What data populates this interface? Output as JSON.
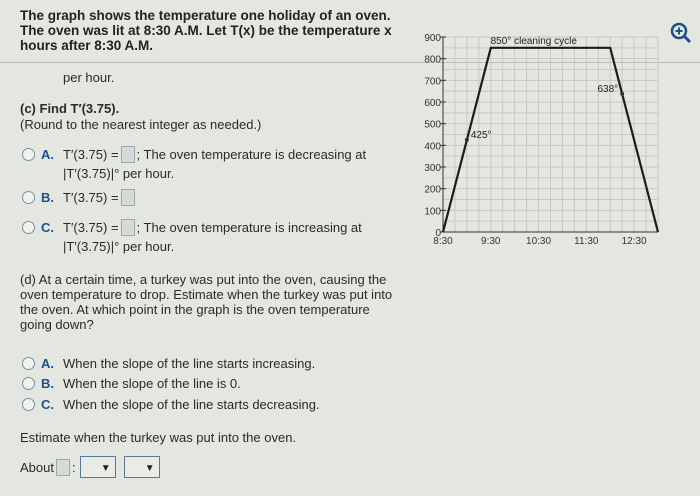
{
  "intro": "The graph shows the temperature one holiday of an oven. The oven was lit at 8:30 A.M. Let T(x) be the temperature x hours after 8:30 A.M.",
  "prev_tail": "per hour.",
  "part_c": {
    "title": "(c) Find T′(3.75).",
    "note": "(Round to the nearest integer as needed.)",
    "options": [
      {
        "letter": "A.",
        "pre": "T′(3.75) =",
        "post": "; The oven temperature is decreasing at",
        "line2": "|T′(3.75)|°  per hour."
      },
      {
        "letter": "B.",
        "pre": "T′(3.75) =",
        "post": "",
        "line2": ""
      },
      {
        "letter": "C.",
        "pre": "T′(3.75) =",
        "post": "; The oven temperature is increasing at",
        "line2": "|T′(3.75)|°  per hour."
      }
    ]
  },
  "part_d": {
    "question": "(d) At a certain time, a turkey was put into the oven, causing the oven temperature to drop. Estimate when the turkey was put into the oven. At which point in the graph is the oven temperature going down?",
    "options": [
      {
        "letter": "A.",
        "text": "When the slope of the line starts increasing."
      },
      {
        "letter": "B.",
        "text": "When the slope of the line is 0."
      },
      {
        "letter": "C.",
        "text": "When the slope of the line starts decreasing."
      }
    ],
    "estimate_prompt": "Estimate when the turkey was put into the oven.",
    "about_label": "About",
    "colon": ":"
  },
  "zoom_icon": "zoom-in-icon",
  "chart_data": {
    "type": "line",
    "x": [
      0,
      1,
      3.5,
      4.5
    ],
    "y": [
      0,
      850,
      850,
      0
    ],
    "xlim": [
      0,
      4.5
    ],
    "ylim": [
      0,
      900
    ],
    "xticks": [
      0,
      1,
      2,
      3,
      4
    ],
    "xtick_labels": [
      "8:30",
      "9:30",
      "10:30",
      "11:30",
      "12:30"
    ],
    "yticks": [
      0,
      100,
      200,
      300,
      400,
      500,
      600,
      700,
      800,
      900
    ],
    "ytick_labels": [
      "0",
      "100",
      "200",
      "300",
      "400",
      "500",
      "600",
      "700",
      "800",
      "900"
    ],
    "grid": true,
    "annotations": [
      {
        "x": 0.5,
        "y": 425,
        "text": "425°"
      },
      {
        "x": 3.75,
        "y": 638,
        "text": "638°"
      },
      {
        "x": 1.9,
        "y": 850,
        "text": "850° cleaning cycle"
      }
    ]
  }
}
